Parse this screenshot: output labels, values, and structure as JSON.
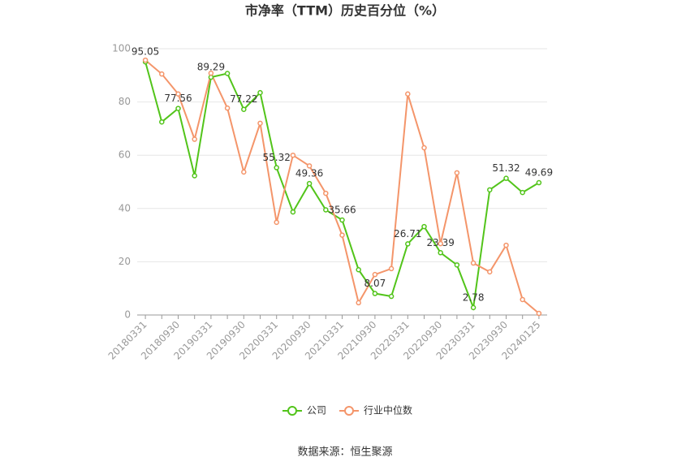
{
  "chart_data": {
    "type": "line",
    "title": "市净率（TTM）历史百分位（%）",
    "source": "数据来源：恒生聚源",
    "categories": [
      "20180331",
      null,
      "20180930",
      null,
      "20190331",
      null,
      "20190930",
      null,
      "20200331",
      null,
      "20200930",
      null,
      "20210331",
      null,
      "20210930",
      null,
      "20220331",
      null,
      "20220930",
      null,
      "20230331",
      null,
      "20230930",
      null,
      "20240125"
    ],
    "series": [
      {
        "name": "公司",
        "color": "#52c41a",
        "values": [
          95.05,
          72.5,
          77.56,
          52.3,
          89.29,
          90.7,
          77.22,
          83.5,
          55.32,
          38.7,
          49.36,
          39.5,
          35.66,
          17,
          8.07,
          7,
          26.71,
          33.2,
          23.39,
          18.8,
          2.78,
          47,
          51.32,
          46,
          49.69
        ],
        "value_labels": [
          "95.05",
          null,
          "77.56",
          null,
          "89.29",
          null,
          "77.22",
          null,
          "55.32",
          null,
          "49.36",
          null,
          "35.66",
          null,
          "8.07",
          null,
          "26.71",
          null,
          "23.39",
          null,
          "2.78",
          null,
          "51.32",
          null,
          "49.69"
        ]
      },
      {
        "name": "行业中位数",
        "color": "#f4956a",
        "values": [
          95.7,
          90.5,
          83,
          66,
          90.8,
          77.7,
          53.7,
          72,
          34.8,
          60,
          56,
          45.7,
          30,
          4.6,
          15.2,
          17.4,
          83,
          62.8,
          26.8,
          53.4,
          19.5,
          16.2,
          26.2,
          5.8,
          0.6
        ]
      }
    ],
    "ylim": [
      0,
      100
    ],
    "yticks": [
      0,
      20,
      40,
      60,
      80,
      100
    ],
    "grid": true
  }
}
